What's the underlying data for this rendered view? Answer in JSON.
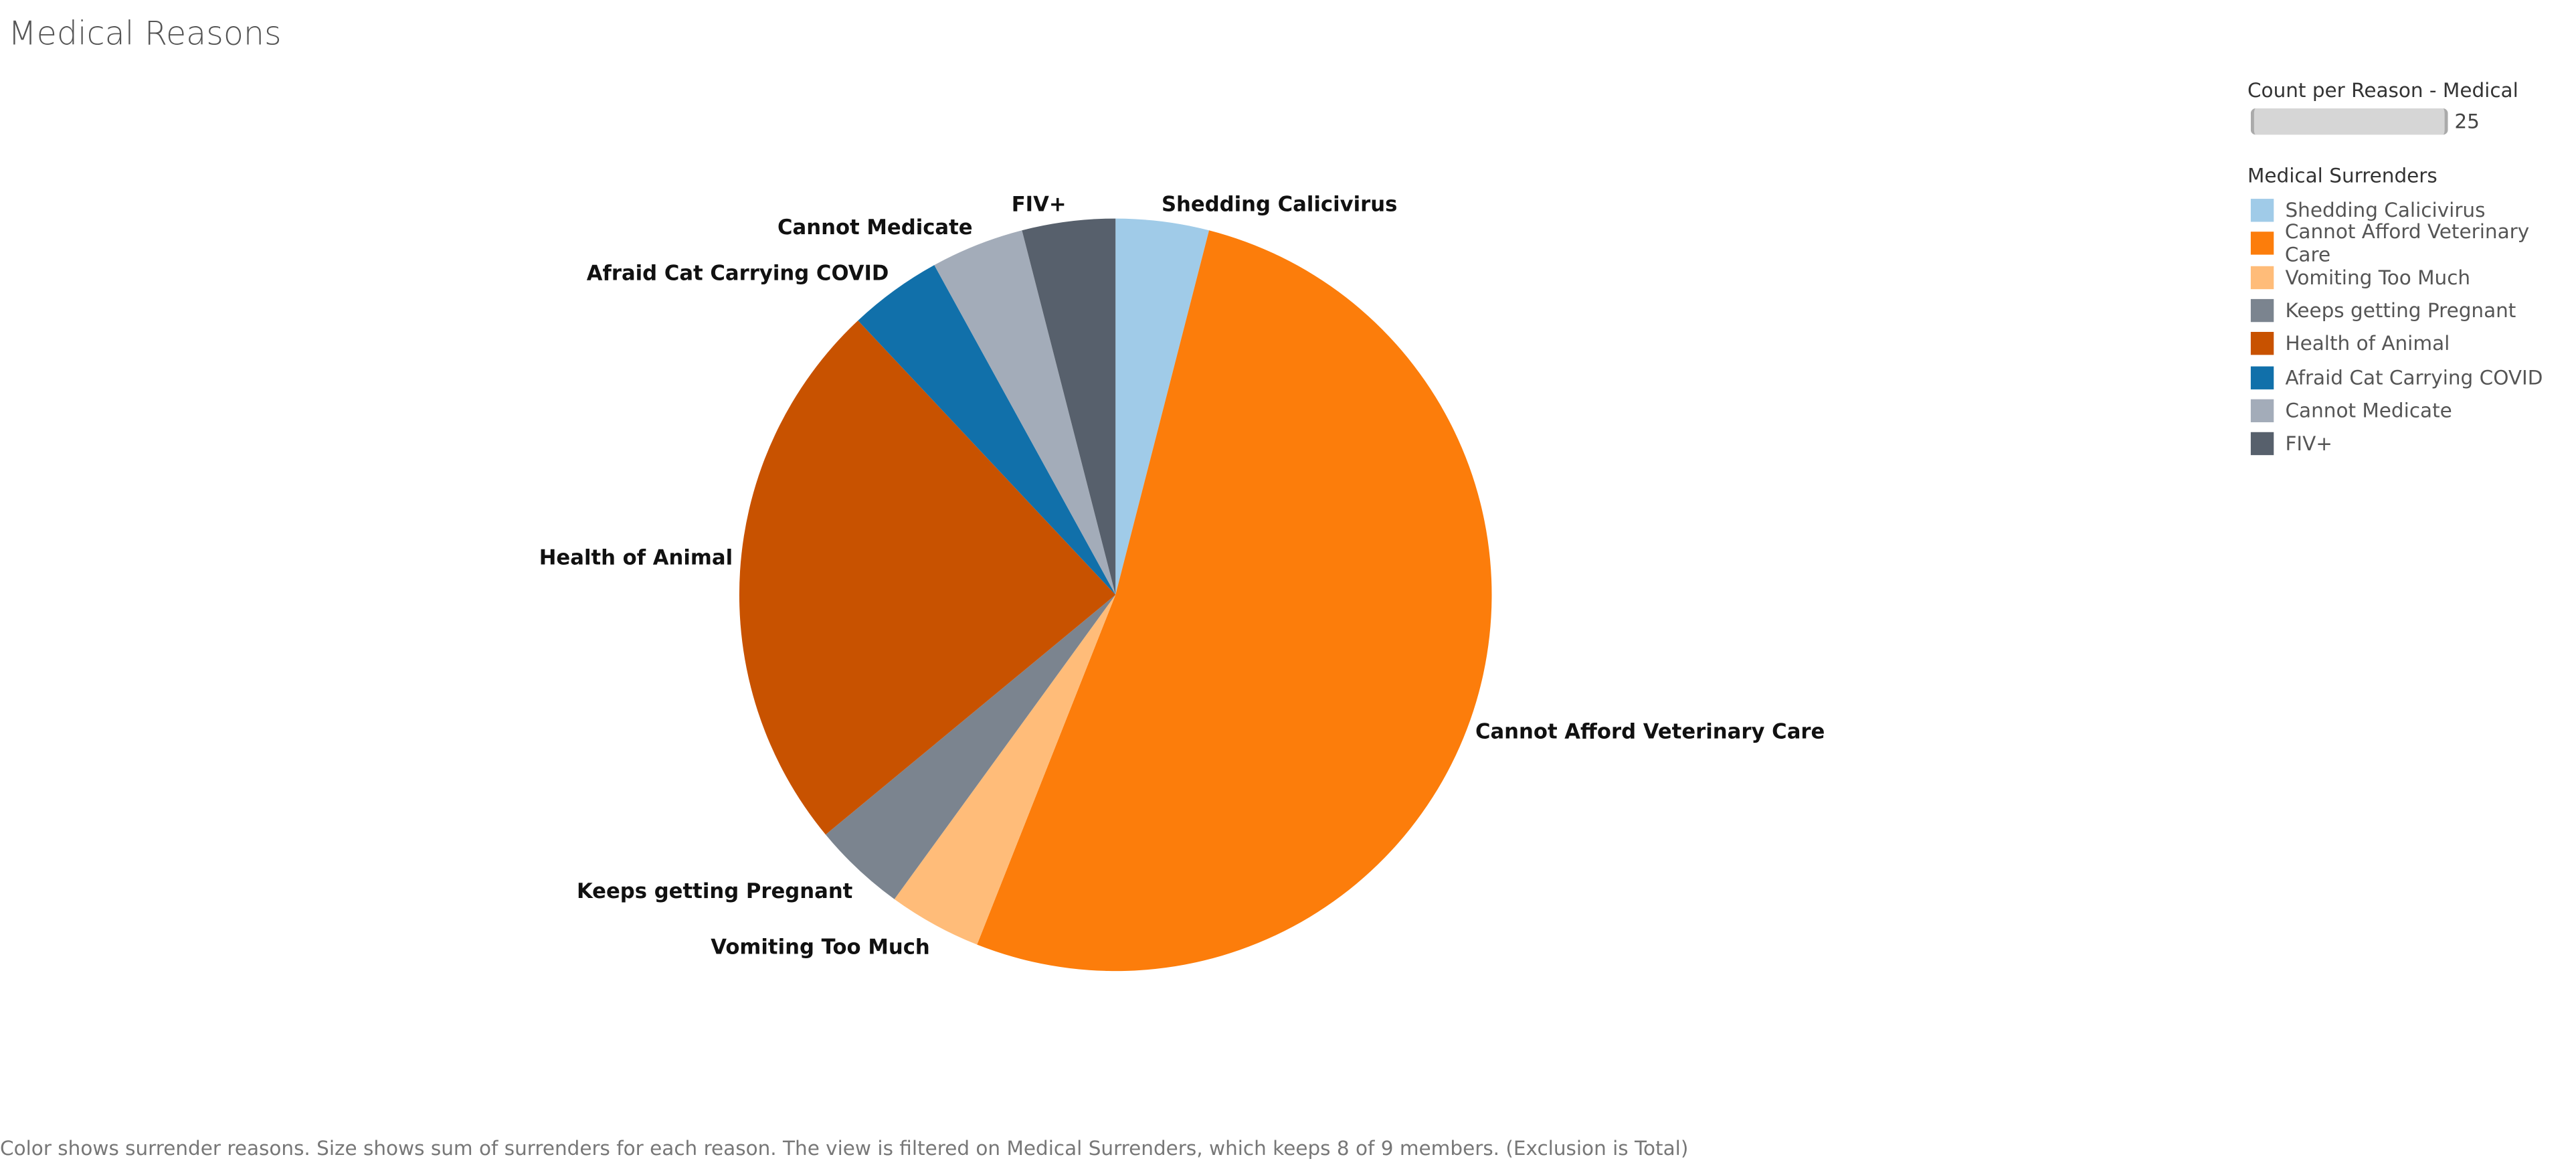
{
  "title": "Medical Reasons",
  "chart_data": {
    "type": "pie",
    "title": "Medical Reasons",
    "categories": [
      "Shedding Calicivirus",
      "Cannot Afford Veterinary Care",
      "Vomiting Too Much",
      "Keeps getting Pregnant",
      "Health of Animal",
      "Afraid Cat Carrying COVID",
      "Cannot Medicate",
      "FIV+"
    ],
    "values": [
      1,
      13,
      1,
      1,
      6,
      1,
      1,
      1
    ],
    "colors": [
      "#a0cbe8",
      "#fc7d0b",
      "#ffbc79",
      "#7b848f",
      "#c85200",
      "#1170aa",
      "#a3acb9",
      "#57606c"
    ],
    "start": "12 o'clock, clockwise"
  },
  "legend": {
    "size_title": "Count per Reason - Medical",
    "size_value": "25",
    "color_title": "Medical Surrenders"
  },
  "footer": "Color shows surrender reasons. Size shows sum of surrenders for each reason.  The view is filtered on Medical Surrenders, which keeps 8 of 9 members. (Exclusion is Total)"
}
